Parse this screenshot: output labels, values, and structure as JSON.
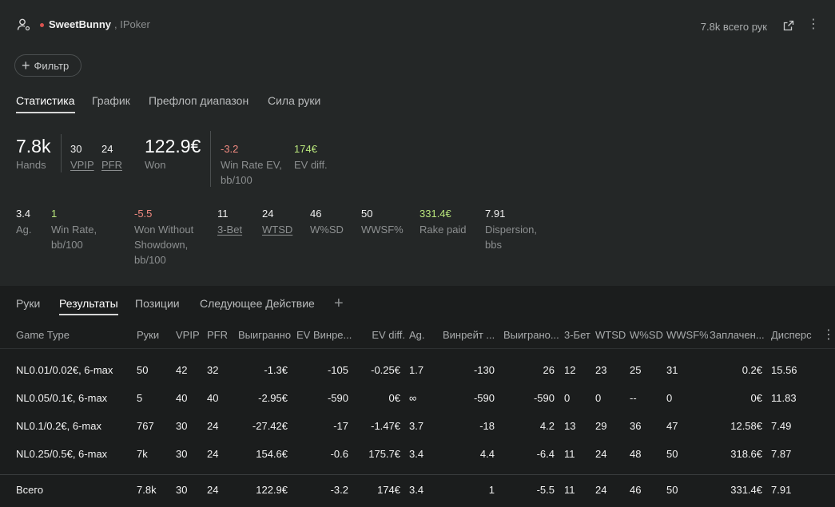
{
  "header": {
    "username": "SweetBunny",
    "room": ", IPoker",
    "hands_total": "7.8k всего рук"
  },
  "filter": {
    "label": "Фильтр"
  },
  "tabs": [
    {
      "label": "Статистика",
      "active": true
    },
    {
      "label": "График",
      "active": false
    },
    {
      "label": "Префлоп диапазон",
      "active": false
    },
    {
      "label": "Сила руки",
      "active": false
    }
  ],
  "summary": {
    "hands": {
      "value": "7.8k",
      "label": "Hands"
    },
    "vpip": {
      "value": "30",
      "label": "VPIP"
    },
    "pfr": {
      "value": "24",
      "label": "PFR"
    },
    "won": {
      "value": "122.9€",
      "label": "Won"
    },
    "win_rate_ev": {
      "value": "-3.2",
      "label1": "Win Rate EV,",
      "label2": "bb/100"
    },
    "ev_diff": {
      "value": "174€",
      "label": "EV diff."
    }
  },
  "stats": {
    "ag": {
      "value": "3.4",
      "label": "Ag."
    },
    "win_rate": {
      "value": "1",
      "label1": "Win Rate,",
      "label2": "bb/100"
    },
    "wwsd": {
      "value": "-5.5",
      "label1": "Won Without",
      "label2": "Showdown,",
      "label3": "bb/100"
    },
    "three_bet": {
      "value": "11",
      "label": "3-Bet"
    },
    "wtsd": {
      "value": "24",
      "label": "WTSD"
    },
    "wsd": {
      "value": "46",
      "label": "W%SD"
    },
    "wwsf": {
      "value": "50",
      "label": "WWSF%"
    },
    "rake": {
      "value": "331.4€",
      "label": "Rake paid"
    },
    "dispersion": {
      "value": "7.91",
      "label1": "Dispersion,",
      "label2": "bbs"
    }
  },
  "subtabs": [
    {
      "label": "Руки",
      "active": false
    },
    {
      "label": "Результаты",
      "active": true
    },
    {
      "label": "Позиции",
      "active": false
    },
    {
      "label": "Следующее Действие",
      "active": false
    }
  ],
  "table": {
    "columns": [
      "Game Type",
      "Руки",
      "VPIP",
      "PFR",
      "Выигранно",
      "EV Винре...",
      "EV diff.",
      "Ag.",
      "Винрейт ...",
      "Выиграно...",
      "3-Бет",
      "WTSD",
      "W%SD",
      "WWSF%",
      "Заплачен...",
      "Дисперс"
    ],
    "rows": [
      [
        "NL0.01/0.02€, 6-max",
        "50",
        "42",
        "32",
        "-1.3€",
        "-105",
        "-0.25€",
        "1.7",
        "-130",
        "26",
        "12",
        "23",
        "25",
        "31",
        "0.2€",
        "15.56"
      ],
      [
        "NL0.05/0.1€, 6-max",
        "5",
        "40",
        "40",
        "-2.95€",
        "-590",
        "0€",
        "∞",
        "-590",
        "-590",
        "0",
        "0",
        "--",
        "0",
        "0€",
        "11.83"
      ],
      [
        "NL0.1/0.2€, 6-max",
        "767",
        "30",
        "24",
        "-27.42€",
        "-17",
        "-1.47€",
        "3.7",
        "-18",
        "4.2",
        "13",
        "29",
        "36",
        "47",
        "12.58€",
        "7.49"
      ],
      [
        "NL0.25/0.5€, 6-max",
        "7k",
        "30",
        "24",
        "154.6€",
        "-0.6",
        "175.7€",
        "3.4",
        "4.4",
        "-6.4",
        "11",
        "24",
        "48",
        "50",
        "318.6€",
        "7.87"
      ]
    ],
    "total": [
      "Всего",
      "7.8k",
      "30",
      "24",
      "122.9€",
      "-3.2",
      "174€",
      "3.4",
      "1",
      "-5.5",
      "11",
      "24",
      "46",
      "50",
      "331.4€",
      "7.91"
    ]
  },
  "colors": {
    "positive": "#b9e67c",
    "negative": "#f08a80",
    "background": "#1b1d1d",
    "panel": "#242727"
  }
}
